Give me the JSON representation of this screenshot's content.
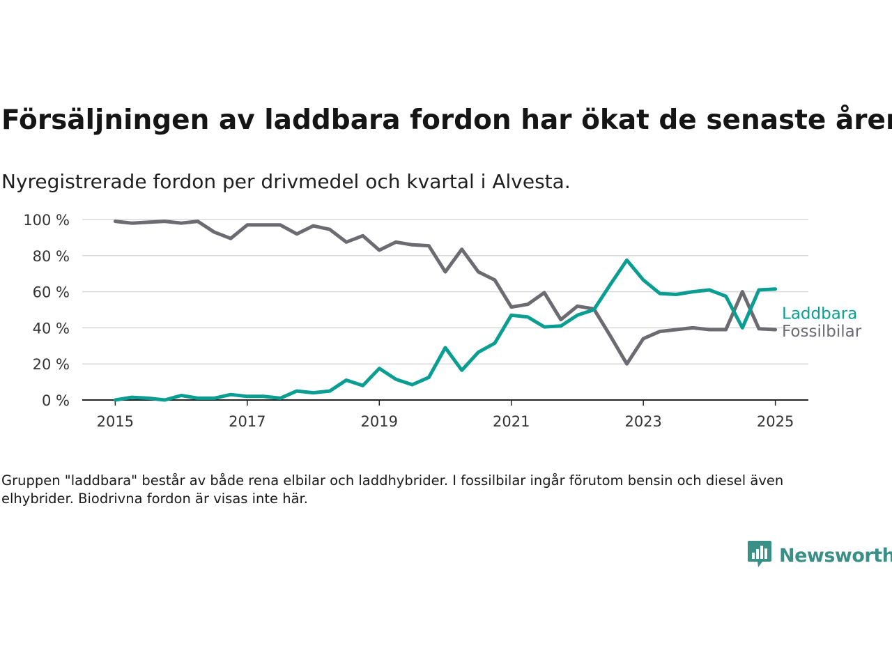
{
  "header": {
    "title": "Försäljningen av laddbara fordon har ökat de senaste åren",
    "subtitle": "Nyregistrerade fordon per drivmedel och kvartal i Alvesta."
  },
  "footer": {
    "note": "Gruppen \"laddbara\" består av både rena elbilar och laddhybrider. I fossilbilar ingår förutom bensin och diesel även elhybrider. Biodrivna fordon är visas inte här.",
    "brand": "Newsworthy"
  },
  "colors": {
    "laddbara": "#0a9e93",
    "fossilbilar": "#6c6b72",
    "grid": "#d9d9d9",
    "axis": "#222222",
    "brand": "#3a8f86"
  },
  "icons": {
    "brand_logo": "bar-chart-speech-bubble-icon"
  },
  "chart_data": {
    "type": "line",
    "x_unit": "year (quarterly data)",
    "x": [
      2015.0,
      2015.25,
      2015.5,
      2015.75,
      2016.0,
      2016.25,
      2016.5,
      2016.75,
      2017.0,
      2017.25,
      2017.5,
      2017.75,
      2018.0,
      2018.25,
      2018.5,
      2018.75,
      2019.0,
      2019.25,
      2019.5,
      2019.75,
      2020.0,
      2020.25,
      2020.5,
      2020.75,
      2021.0,
      2021.25,
      2021.5,
      2021.75,
      2022.0,
      2022.25,
      2022.5,
      2022.75,
      2023.0,
      2023.25,
      2023.5,
      2023.75,
      2024.0,
      2024.25,
      2024.5,
      2024.75,
      2025.0
    ],
    "series": [
      {
        "name": "Laddbara",
        "color": "#0a9e93",
        "values": [
          0,
          1.5,
          1,
          0,
          2.5,
          1,
          1,
          3,
          2,
          2,
          1,
          5,
          4,
          5,
          11,
          8,
          17.5,
          11.5,
          8.5,
          12.5,
          29,
          16.5,
          26.5,
          31.5,
          47,
          46,
          40.5,
          41,
          47,
          50,
          64,
          77.5,
          66.5,
          59,
          58.5,
          60,
          61,
          57.5,
          40,
          61,
          61.5
        ]
      },
      {
        "name": "Fossilbilar",
        "color": "#6c6b72",
        "values": [
          99,
          98,
          98.5,
          99,
          98,
          99,
          93,
          89.5,
          97,
          97,
          97,
          92,
          96.5,
          94.5,
          87.5,
          91,
          83,
          87.5,
          86,
          85.5,
          71,
          83.5,
          71,
          66.5,
          51.5,
          53,
          59.5,
          44.5,
          52,
          50.5,
          35.5,
          20,
          34,
          38,
          39,
          40,
          39,
          39,
          60,
          39.5,
          39
        ]
      }
    ],
    "y_ticks": [
      "0 %",
      "20 %",
      "40 %",
      "60 %",
      "80 %",
      "100 %"
    ],
    "y_tick_values": [
      0,
      20,
      40,
      60,
      80,
      100
    ],
    "x_ticks": [
      "2015",
      "2017",
      "2019",
      "2021",
      "2023",
      "2025"
    ],
    "x_tick_values": [
      2015,
      2017,
      2019,
      2021,
      2023,
      2025
    ],
    "xlim": [
      2014.5,
      2025.5
    ],
    "ylim": [
      0,
      100
    ],
    "grid": true,
    "legend": "direct labels at line ends (right)"
  }
}
